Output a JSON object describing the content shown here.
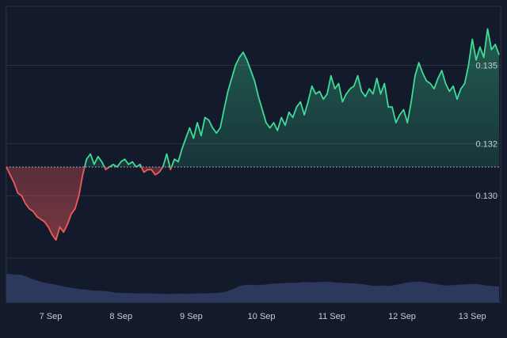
{
  "chart_data": {
    "type": "area",
    "title": "",
    "xlabel": "",
    "ylabel": "",
    "x_ticks": [
      "7 Sep",
      "8 Sep",
      "9 Sep",
      "10 Sep",
      "11 Sep",
      "12 Sep",
      "13 Sep"
    ],
    "y_ticks": [
      "0.130",
      "0.132",
      "0.135"
    ],
    "ylim": [
      0.1277,
      0.1372
    ],
    "baseline": 0.1311,
    "grid": true,
    "colors": {
      "up_line": "#3ddc97",
      "down_line": "#f05a5a",
      "volume": "#303c62",
      "background": "#131a2b",
      "grid": "#2a3144"
    },
    "series": [
      {
        "values": [
          0.1311,
          0.1308,
          0.1305,
          0.1301,
          0.13,
          0.1297,
          0.1295,
          0.1294,
          0.1292,
          0.1291,
          0.129,
          0.1288,
          0.1285,
          0.1283,
          0.1288,
          0.1286,
          0.1289,
          0.1293,
          0.1295,
          0.13,
          0.1308,
          0.1314,
          0.1316,
          0.1312,
          0.1315,
          0.1313,
          0.131,
          0.1311,
          0.1312,
          0.1311,
          0.1313,
          0.1314,
          0.1312,
          0.1313,
          0.1311,
          0.1312,
          0.1309,
          0.131,
          0.131,
          0.1308,
          0.1309,
          0.1311,
          0.1316,
          0.131,
          0.1314,
          0.1313,
          0.1318,
          0.1322,
          0.1326,
          0.1322,
          0.1328,
          0.1323,
          0.133,
          0.1329,
          0.1326,
          0.1324,
          0.1326,
          0.1333,
          0.134,
          0.1345,
          0.135,
          0.1353,
          0.1355,
          0.1352,
          0.1348,
          0.1344,
          0.1338,
          0.1333,
          0.1328,
          0.1326,
          0.1328,
          0.1325,
          0.133,
          0.1327,
          0.1332,
          0.133,
          0.1334,
          0.1336,
          0.1331,
          0.1336,
          0.1342,
          0.1339,
          0.134,
          0.1337,
          0.1339,
          0.1346,
          0.1341,
          0.1343,
          0.1336,
          0.1339,
          0.1341,
          0.1342,
          0.1346,
          0.134,
          0.1338,
          0.1341,
          0.1339,
          0.1345,
          0.1339,
          0.1343,
          0.1334,
          0.1334,
          0.1328,
          0.1331,
          0.1333,
          0.1328,
          0.1336,
          0.1346,
          0.1351,
          0.1347,
          0.1344,
          0.1343,
          0.1341,
          0.1345,
          0.1348,
          0.1343,
          0.134,
          0.1342,
          0.1337,
          0.1341,
          0.1343,
          0.135,
          0.136,
          0.1352,
          0.1357,
          0.1353,
          0.1364,
          0.1356,
          0.1358,
          0.1354
        ]
      }
    ],
    "volume": [
      0.65,
      0.63,
      0.62,
      0.55,
      0.49,
      0.44,
      0.41,
      0.37,
      0.34,
      0.31,
      0.29,
      0.27,
      0.26,
      0.25,
      0.22,
      0.21,
      0.21,
      0.2,
      0.2,
      0.2,
      0.19,
      0.19,
      0.2,
      0.19,
      0.2,
      0.2,
      0.21,
      0.21,
      0.24,
      0.3,
      0.38,
      0.4,
      0.39,
      0.4,
      0.42,
      0.43,
      0.44,
      0.44,
      0.46,
      0.45,
      0.46,
      0.47,
      0.45,
      0.44,
      0.43,
      0.42,
      0.4,
      0.37,
      0.38,
      0.37,
      0.4,
      0.44,
      0.46,
      0.47,
      0.44,
      0.41,
      0.38,
      0.39,
      0.4,
      0.41,
      0.42,
      0.39,
      0.37,
      0.36
    ]
  }
}
